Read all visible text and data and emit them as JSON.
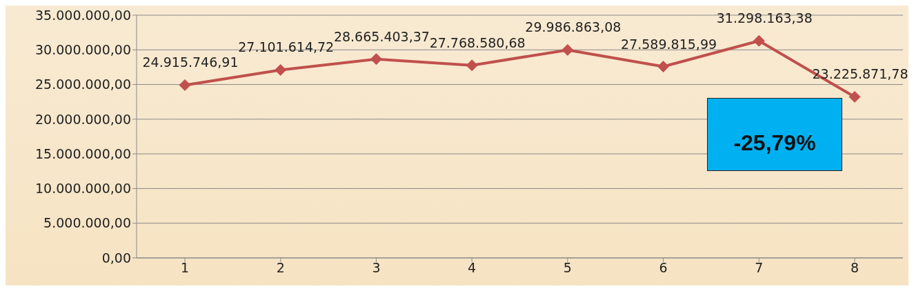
{
  "chart_data": {
    "type": "line",
    "categories": [
      "1",
      "2",
      "3",
      "4",
      "5",
      "6",
      "7",
      "8"
    ],
    "series": [
      {
        "color": "#c0504d",
        "values": [
          24915746.91,
          27101614.72,
          28665403.37,
          27768580.68,
          29986863.08,
          27589815.99,
          31298163.38,
          23225871.78
        ],
        "value_labels": [
          "24.915.746,91",
          "27.101.614,72",
          "28.665.403,37",
          "27.768.580,68",
          "29.986.863,08",
          "27.589.815,99",
          "31.298.163,38",
          "23.225.871,78"
        ]
      }
    ],
    "ylim": [
      0,
      35000000
    ],
    "yticks": [
      {
        "value": 0,
        "label": "0,00"
      },
      {
        "value": 5000000,
        "label": "5.000.000,00"
      },
      {
        "value": 10000000,
        "label": "10.000.000,00"
      },
      {
        "value": 15000000,
        "label": "15.000.000,00"
      },
      {
        "value": 20000000,
        "label": "20.000.000,00"
      },
      {
        "value": 25000000,
        "label": "25.000.000,00"
      },
      {
        "value": 30000000,
        "label": "30.000.000,00"
      },
      {
        "value": 35000000,
        "label": "35.000.000,00"
      }
    ],
    "grid": "y",
    "legend": false,
    "marker": "diamond",
    "line_style": "solid",
    "annotations": [
      "-25,79%"
    ]
  }
}
